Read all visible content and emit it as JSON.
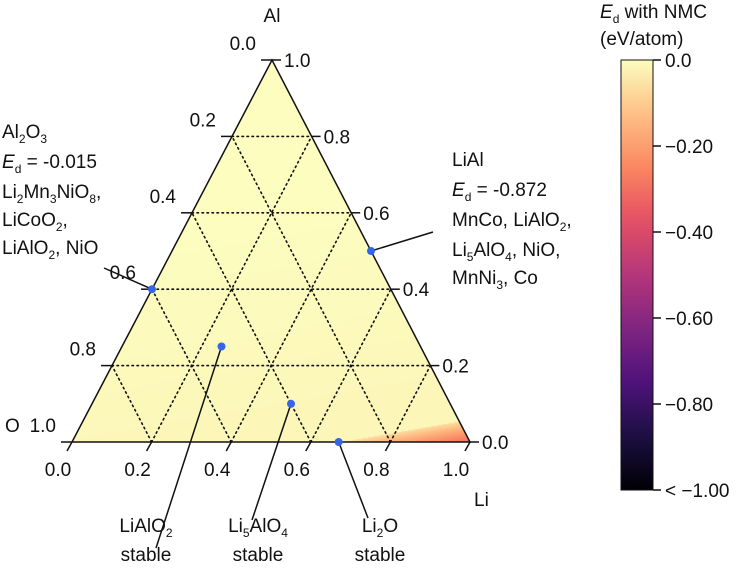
{
  "chart_data": {
    "type": "heatmap",
    "subtype": "ternary",
    "vertices": {
      "top": "Al",
      "left": "O",
      "right": "Li"
    },
    "axes": {
      "bottom": {
        "ticks": [
          "0.0",
          "0.2",
          "0.4",
          "0.6",
          "0.8",
          "1.0"
        ]
      },
      "left": {
        "ticks": [
          "0.0",
          "0.2",
          "0.4",
          "0.6",
          "0.8",
          "1.0"
        ]
      },
      "right": {
        "ticks": [
          "0.0",
          "0.2",
          "0.4",
          "0.6",
          "0.8",
          "1.0"
        ]
      }
    },
    "grid": true,
    "grid_style": "dotted",
    "colormap": "magma",
    "colorbar": {
      "title_sym": "E",
      "title_sub": "d",
      "title_rest": " with NMC",
      "units": "(eV/atom)",
      "ticks": [
        "0.0",
        "−0.20",
        "−0.40",
        "−0.60",
        "−0.80",
        "< −1.00"
      ],
      "values": [
        0.0,
        -0.2,
        -0.4,
        -0.6,
        -0.8,
        -1.0
      ],
      "range": [
        -1.0,
        0.0
      ]
    },
    "points": [
      {
        "name": "Al2O3 end",
        "Al": 0.4,
        "Li": 0.0,
        "O": 0.6
      },
      {
        "name": "LiAl end",
        "Al": 0.5,
        "Li": 0.5,
        "O": 0.0
      },
      {
        "name": "LiAlO2",
        "Al": 0.25,
        "Li": 0.25,
        "O": 0.5
      },
      {
        "name": "Li5AlO4",
        "Al": 0.1,
        "Li": 0.5,
        "O": 0.4
      },
      {
        "name": "Li2O",
        "Al": 0.0,
        "Li": 0.67,
        "O": 0.33
      }
    ],
    "annotations": {
      "al2o3": [
        [
          {
            "t": "Al"
          },
          {
            "t": "2",
            "sub": true
          },
          {
            "t": "O"
          },
          {
            "t": "3",
            "sub": true
          }
        ],
        [
          {
            "t": "E",
            "italic": true
          },
          {
            "t": "d",
            "sub": true
          },
          {
            "t": " = -0.015"
          }
        ],
        [
          {
            "t": "Li"
          },
          {
            "t": "2",
            "sub": true
          },
          {
            "t": "Mn"
          },
          {
            "t": "3",
            "sub": true
          },
          {
            "t": "NiO"
          },
          {
            "t": "8",
            "sub": true
          },
          {
            "t": ","
          }
        ],
        [
          {
            "t": "LiCoO"
          },
          {
            "t": "2",
            "sub": true
          },
          {
            "t": ","
          }
        ],
        [
          {
            "t": "LiAlO"
          },
          {
            "t": "2",
            "sub": true
          },
          {
            "t": ", NiO"
          }
        ]
      ],
      "lial": [
        [
          {
            "t": "LiAl"
          }
        ],
        [
          {
            "t": "E",
            "italic": true
          },
          {
            "t": "d",
            "sub": true
          },
          {
            "t": " = -0.872"
          }
        ],
        [
          {
            "t": "MnCo, LiAlO"
          },
          {
            "t": "2",
            "sub": true
          },
          {
            "t": ","
          }
        ],
        [
          {
            "t": "Li"
          },
          {
            "t": "5",
            "sub": true
          },
          {
            "t": "AlO"
          },
          {
            "t": "4",
            "sub": true
          },
          {
            "t": ", NiO,"
          }
        ],
        [
          {
            "t": "MnNi"
          },
          {
            "t": "3",
            "sub": true
          },
          {
            "t": ", Co"
          }
        ]
      ],
      "bottom": [
        {
          "lines": [
            [
              {
                "t": "LiAlO"
              },
              {
                "t": "2",
                "sub": true
              }
            ],
            [
              {
                "t": "stable"
              }
            ]
          ]
        },
        {
          "lines": [
            [
              {
                "t": "Li"
              },
              {
                "t": "5",
                "sub": true
              },
              {
                "t": "AlO"
              },
              {
                "t": "4",
                "sub": true
              }
            ],
            [
              {
                "t": "stable"
              }
            ]
          ]
        },
        {
          "lines": [
            [
              {
                "t": "Li"
              },
              {
                "t": "2",
                "sub": true
              },
              {
                "t": "O"
              }
            ],
            [
              {
                "t": "stable"
              }
            ]
          ]
        }
      ]
    },
    "colors": {
      "marker": "#3565e8",
      "grid": "#111111"
    }
  }
}
